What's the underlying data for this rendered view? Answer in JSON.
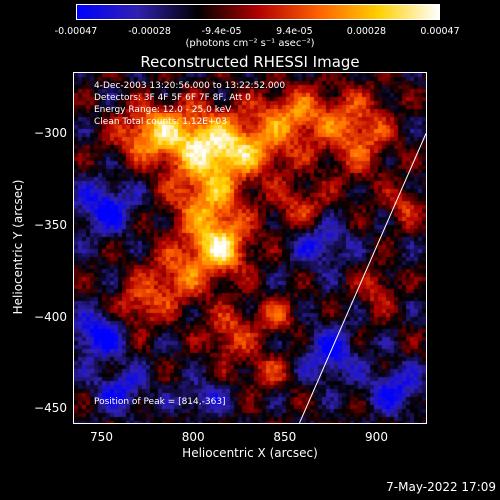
{
  "colorbar": {
    "ticks": [
      "-0.00047",
      "-0.00028",
      "-9.4e-05",
      "9.4e-05",
      "0.00028",
      "0.00047"
    ],
    "tick_values": [
      -0.00047,
      -0.00028,
      -9.4e-05,
      9.4e-05,
      0.00028,
      0.00047
    ],
    "units": "(photons cm⁻² s⁻¹ asec⁻²)",
    "gradient": [
      "#0000ff",
      "#3020b0",
      "#000000",
      "#b00000",
      "#ff6000",
      "#ffd000",
      "#ffffff"
    ]
  },
  "info": {
    "time": "4-Dec-2003 13:20:56.000 to 13:22:52.000",
    "detectors": "Detectors: 3F 4F 5F 6F 7F 8F, Att 0",
    "energy": "Energy Range: 12.0 - 25.0 keV",
    "clean": "Clean     Total counts: 1.12E+03",
    "peak": "Position of Peak = [814,-363]"
  },
  "timestamp": "7-May-2022 17:09",
  "chart_data": {
    "type": "heatmap",
    "title": "Reconstructed RHESSI Image",
    "xlabel": "Heliocentric X (arcsec)",
    "ylabel": "Heliocentric Y (arcsec)",
    "xlim": [
      735,
      927
    ],
    "ylim": [
      -458,
      -267
    ],
    "xticks": [
      750,
      800,
      850,
      900
    ],
    "yticks": [
      -300,
      -350,
      -400,
      -450
    ],
    "zlim": [
      -0.00047,
      0.00047
    ],
    "peak": [
      814,
      -363
    ],
    "limb_line": [
      [
        858,
        -458
      ],
      [
        927,
        -300
      ]
    ],
    "bright_regions": [
      {
        "x": 814,
        "y": -363,
        "rx": 16,
        "ry": 14,
        "v": 0.00047
      },
      {
        "x": 808,
        "y": -335,
        "rx": 20,
        "ry": 22,
        "v": 0.0004
      },
      {
        "x": 825,
        "y": -310,
        "rx": 30,
        "ry": 14,
        "v": 0.00036
      },
      {
        "x": 800,
        "y": -300,
        "rx": 28,
        "ry": 16,
        "v": 0.00034
      },
      {
        "x": 855,
        "y": -290,
        "rx": 22,
        "ry": 14,
        "v": 0.00034
      },
      {
        "x": 890,
        "y": -300,
        "rx": 18,
        "ry": 22,
        "v": 0.0003
      },
      {
        "x": 775,
        "y": -300,
        "rx": 18,
        "ry": 14,
        "v": 0.00028
      },
      {
        "x": 790,
        "y": -380,
        "rx": 18,
        "ry": 16,
        "v": 0.00028
      },
      {
        "x": 770,
        "y": -395,
        "rx": 12,
        "ry": 12,
        "v": 0.00024
      },
      {
        "x": 820,
        "y": -410,
        "rx": 12,
        "ry": 14,
        "v": 0.00026
      },
      {
        "x": 845,
        "y": -400,
        "rx": 12,
        "ry": 10,
        "v": 0.00022
      },
      {
        "x": 858,
        "y": -340,
        "rx": 14,
        "ry": 12,
        "v": 0.00022
      },
      {
        "x": 840,
        "y": -430,
        "rx": 12,
        "ry": 10,
        "v": 0.0002
      },
      {
        "x": 900,
        "y": -385,
        "rx": 10,
        "ry": 12,
        "v": 0.0002
      },
      {
        "x": 915,
        "y": -340,
        "rx": 10,
        "ry": 10,
        "v": 0.0002
      }
    ],
    "dim_regions": [
      {
        "x": 752,
        "y": -340,
        "rx": 16,
        "ry": 14,
        "v": -0.0003
      },
      {
        "x": 748,
        "y": -410,
        "rx": 14,
        "ry": 12,
        "v": -0.00034
      },
      {
        "x": 760,
        "y": -440,
        "rx": 14,
        "ry": 12,
        "v": -0.00024
      },
      {
        "x": 875,
        "y": -420,
        "rx": 14,
        "ry": 14,
        "v": -0.00028
      },
      {
        "x": 870,
        "y": -360,
        "rx": 14,
        "ry": 12,
        "v": -0.00024
      },
      {
        "x": 910,
        "y": -440,
        "rx": 14,
        "ry": 12,
        "v": -0.00028
      },
      {
        "x": 805,
        "y": -445,
        "rx": 14,
        "ry": 8,
        "v": -0.0002
      }
    ]
  }
}
